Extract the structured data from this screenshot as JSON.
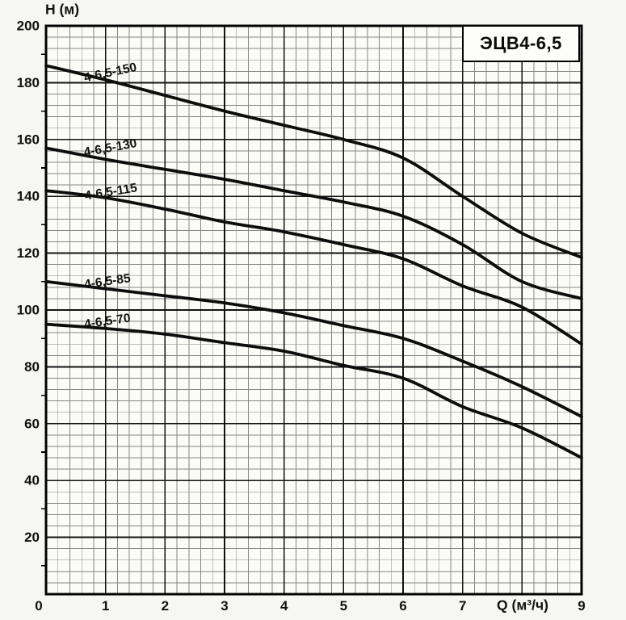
{
  "page": {
    "background": "#f6f6f3",
    "plot_background": "#fbfbf8"
  },
  "title_box": {
    "label": "ЭЦВ4-6,5"
  },
  "chart_data": {
    "type": "line",
    "title": "ЭЦВ4-6,5",
    "ylabel": "H (м)",
    "xlabel": "Q (м³/ч)",
    "xlim": [
      0,
      9
    ],
    "ylim": [
      0,
      200
    ],
    "x_major_step": 1,
    "x_minor_step": 0.2,
    "y_major_step": 20,
    "y_minor_step": 4,
    "grid": true,
    "legend_position": "inline-curve-labels",
    "x_tick_values": [
      0,
      1,
      2,
      3,
      4,
      5,
      6,
      7,
      9
    ],
    "x_tick_labels": [
      "0",
      "1",
      "2",
      "3",
      "4",
      "5",
      "6",
      "7",
      "9"
    ],
    "x_axis_label_slot": 8,
    "y_tick_values": [
      20,
      40,
      60,
      80,
      100,
      120,
      140,
      160,
      180,
      200
    ],
    "y_tick_labels": [
      "20",
      "40",
      "60",
      "80",
      "100",
      "120",
      "140",
      "160",
      "180",
      "200"
    ],
    "colors": {
      "curve": "#0d0d0d",
      "grid_minor": "#606060",
      "grid_major": "#000000",
      "frame": "#000000",
      "text": "#111111"
    },
    "x": [
      0,
      1,
      2,
      3,
      4,
      5,
      6,
      7,
      8,
      9
    ],
    "series": [
      {
        "name": "4-6,5-150",
        "values": [
          186,
          181,
          175.5,
          170,
          165,
          160,
          153.5,
          140,
          127,
          118.5
        ],
        "label": {
          "q": 1.08,
          "h": 183.5,
          "angle": -12
        }
      },
      {
        "name": "4-6,5-130",
        "values": [
          157,
          153,
          149.5,
          146,
          142,
          138,
          133,
          123,
          110,
          104
        ],
        "label": {
          "q": 1.08,
          "h": 157.0,
          "angle": -10
        }
      },
      {
        "name": "4-6,5-115",
        "values": [
          142,
          139.5,
          135.5,
          131,
          127.5,
          123,
          118,
          108.5,
          101,
          88
        ],
        "label": {
          "q": 1.09,
          "h": 141.5,
          "angle": -9
        }
      },
      {
        "name": "4-6,5-85",
        "values": [
          110,
          107.5,
          105,
          102.5,
          99,
          94.5,
          90,
          82,
          73,
          62.5
        ],
        "label": {
          "q": 1.03,
          "h": 110.0,
          "angle": -8
        }
      },
      {
        "name": "4-6,5-70",
        "values": [
          95,
          93.5,
          91.5,
          88.5,
          85.5,
          80.5,
          76,
          66,
          58.5,
          48
        ],
        "label": {
          "q": 1.03,
          "h": 96.0,
          "angle": -8
        }
      }
    ]
  }
}
